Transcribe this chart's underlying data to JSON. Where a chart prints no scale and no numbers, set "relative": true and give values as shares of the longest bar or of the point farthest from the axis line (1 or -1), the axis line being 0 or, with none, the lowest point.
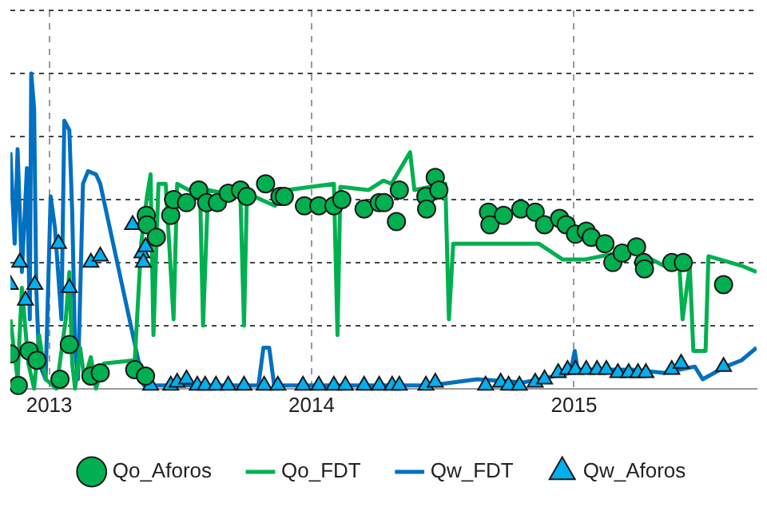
{
  "chart_data": {
    "type": "line",
    "relative": true,
    "grid": true,
    "legend": "bottom",
    "xlim": [
      "2012-11-08",
      "2015-09-12"
    ],
    "xticks": [
      "2013",
      "2014",
      "2015"
    ],
    "series": [
      {
        "name": "Qo_Aforos",
        "type": "scatter",
        "marker": "circle",
        "color": "#00b050",
        "x": [
          "2012-11-08",
          "2012-11-19",
          "2012-12-04",
          "2012-12-15",
          "2013-01-16",
          "2013-01-29",
          "2013-02-28",
          "2013-03-13",
          "2013-04-30",
          "2013-05-15",
          "2013-05-16",
          "2013-05-17",
          "2013-05-30",
          "2013-06-19",
          "2013-06-23",
          "2013-07-11",
          "2013-07-28",
          "2013-08-08",
          "2013-08-23",
          "2013-09-07",
          "2013-09-24",
          "2013-10-03",
          "2013-10-29",
          "2013-11-18",
          "2013-11-24",
          "2013-12-22",
          "2014-01-11",
          "2014-02-01",
          "2014-02-12",
          "2014-03-15",
          "2014-04-05",
          "2014-04-12",
          "2014-04-29",
          "2014-05-03",
          "2014-06-09",
          "2014-06-10",
          "2014-06-22",
          "2014-06-27",
          "2014-09-04",
          "2014-09-06",
          "2014-09-25",
          "2014-10-19",
          "2014-11-08",
          "2014-11-21",
          "2014-12-12",
          "2014-12-21",
          "2015-01-03",
          "2015-01-18",
          "2015-01-25",
          "2015-02-13",
          "2015-02-24",
          "2015-03-09",
          "2015-03-29",
          "2015-04-08",
          "2015-04-09",
          "2015-05-17",
          "2015-06-02",
          "2015-07-28"
        ],
        "values": [
          0.11,
          0.01,
          0.12,
          0.09,
          0.03,
          0.14,
          0.04,
          0.05,
          0.06,
          0.04,
          0.55,
          0.52,
          0.48,
          0.55,
          0.6,
          0.59,
          0.63,
          0.59,
          0.59,
          0.62,
          0.63,
          0.61,
          0.65,
          0.61,
          0.61,
          0.58,
          0.58,
          0.58,
          0.6,
          0.57,
          0.59,
          0.59,
          0.53,
          0.63,
          0.61,
          0.57,
          0.67,
          0.63,
          0.56,
          0.52,
          0.55,
          0.57,
          0.56,
          0.52,
          0.54,
          0.52,
          0.49,
          0.5,
          0.48,
          0.46,
          0.4,
          0.43,
          0.45,
          0.4,
          0.38,
          0.4,
          0.4,
          0.33
        ]
      },
      {
        "name": "Qo_FDT",
        "type": "line",
        "marker": "none",
        "color": "#00b050",
        "x": [
          "2012-11-08",
          "2012-11-18",
          "2012-11-24",
          "2012-12-03",
          "2012-12-11",
          "2012-12-18",
          "2012-12-27",
          "2013-01-11",
          "2013-01-24",
          "2013-01-29",
          "2013-02-02",
          "2013-02-06",
          "2013-02-13",
          "2013-02-19",
          "2013-02-28",
          "2013-03-07",
          "2013-03-18",
          "2013-04-30",
          "2013-05-09",
          "2013-05-17",
          "2013-05-22",
          "2013-05-26",
          "2013-06-02",
          "2013-06-12",
          "2013-06-23",
          "2013-06-28",
          "2013-07-30",
          "2013-08-03",
          "2013-08-10",
          "2013-09-24",
          "2013-09-29",
          "2013-10-03",
          "2013-11-11",
          "2013-11-28",
          "2014-02-01",
          "2014-02-06",
          "2014-02-10",
          "2014-03-21",
          "2014-04-11",
          "2014-04-22",
          "2014-05-18",
          "2014-05-24",
          "2014-07-06",
          "2014-07-11",
          "2014-07-17",
          "2014-09-09",
          "2014-11-13",
          "2014-12-16",
          "2015-01-17",
          "2015-03-23",
          "2015-05-06",
          "2015-05-27",
          "2015-06-01",
          "2015-06-11",
          "2015-06-16",
          "2015-07-03",
          "2015-07-07",
          "2015-08-22",
          "2015-09-12"
        ],
        "values": [
          0.22,
          0.03,
          0.32,
          0.08,
          0,
          0.17,
          0.03,
          0,
          0.22,
          0.37,
          0.08,
          0,
          0.13,
          0.03,
          0.1,
          0,
          0.08,
          0.09,
          0.46,
          0.61,
          0.68,
          0.17,
          0.65,
          0.65,
          0.22,
          0.65,
          0.61,
          0.2,
          0.63,
          0.61,
          0.2,
          0.62,
          0.58,
          0.63,
          0.65,
          0.17,
          0.64,
          0.63,
          0.66,
          0.65,
          0.75,
          0.63,
          0.65,
          0.22,
          0.46,
          0.46,
          0.46,
          0.41,
          0.41,
          0.44,
          0.39,
          0.41,
          0.22,
          0.39,
          0.12,
          0.12,
          0.42,
          0.39,
          0.37
        ]
      },
      {
        "name": "Qw_FDT",
        "type": "line",
        "marker": "none",
        "color": "#0070c0",
        "x": [
          "2012-11-08",
          "2012-11-14",
          "2012-11-18",
          "2012-11-24",
          "2012-12-01",
          "2012-12-05",
          "2012-12-07",
          "2012-12-11",
          "2012-12-14",
          "2012-12-18",
          "2012-12-27",
          "2013-01-03",
          "2013-01-09",
          "2013-01-18",
          "2013-01-22",
          "2013-01-29",
          "2013-02-02",
          "2013-02-06",
          "2013-02-10",
          "2013-02-17",
          "2013-02-24",
          "2013-03-07",
          "2013-03-13",
          "2013-05-04",
          "2013-05-13",
          "2013-10-19",
          "2013-10-26",
          "2013-11-03",
          "2013-11-10",
          "2014-04-11",
          "2014-06-15",
          "2014-08-19",
          "2014-10-23",
          "2014-12-27",
          "2015-01-02",
          "2015-01-06",
          "2015-03-23",
          "2015-05-06",
          "2015-06-18",
          "2015-06-29",
          "2015-07-31",
          "2015-08-22",
          "2015-09-12"
        ],
        "values": [
          0.75,
          0.46,
          0.76,
          0.37,
          0.7,
          0.22,
          1,
          0.89,
          0.32,
          0.08,
          0.03,
          0.61,
          0.51,
          0.22,
          0.85,
          0.82,
          0.56,
          0.13,
          0.03,
          0.65,
          0.69,
          0.68,
          0.65,
          0.1,
          0.01,
          0.01,
          0.13,
          0.13,
          0.01,
          0.01,
          0.01,
          0.03,
          0.02,
          0.05,
          0.12,
          0.06,
          0.06,
          0.05,
          0.07,
          0.03,
          0.07,
          0.09,
          0.13
        ]
      },
      {
        "name": "Qw_Aforos",
        "type": "scatter",
        "marker": "triangle",
        "color": "#00b0f0",
        "x": [
          "2012-11-08",
          "2012-11-21",
          "2012-11-29",
          "2012-12-12",
          "2013-01-14",
          "2013-01-29",
          "2013-02-28",
          "2013-03-13",
          "2013-04-27",
          "2013-05-10",
          "2013-05-12",
          "2013-05-15",
          "2013-05-22",
          "2013-06-19",
          "2013-06-28",
          "2013-07-11",
          "2013-07-26",
          "2013-08-06",
          "2013-08-21",
          "2013-09-07",
          "2013-09-29",
          "2013-10-27",
          "2013-11-15",
          "2013-12-20",
          "2014-01-11",
          "2014-02-01",
          "2014-02-17",
          "2014-03-15",
          "2014-04-05",
          "2014-04-23",
          "2014-05-03",
          "2014-06-09",
          "2014-06-22",
          "2014-08-31",
          "2014-09-21",
          "2014-10-02",
          "2014-10-17",
          "2014-11-08",
          "2014-11-21",
          "2014-12-10",
          "2014-12-23",
          "2015-01-03",
          "2015-01-18",
          "2015-02-02",
          "2015-02-15",
          "2015-03-03",
          "2015-03-18",
          "2015-03-31",
          "2015-04-11",
          "2015-05-17",
          "2015-05-30",
          "2015-07-28"
        ],
        "values": [
          0.33,
          0.4,
          0.28,
          0.33,
          0.46,
          0.32,
          0.4,
          0.42,
          0.52,
          0.43,
          0.4,
          0.45,
          0.01,
          0.01,
          0.02,
          0.03,
          0.01,
          0.01,
          0.01,
          0.01,
          0.01,
          0.01,
          0.01,
          0.01,
          0.01,
          0.01,
          0.01,
          0.01,
          0.01,
          0.01,
          0.01,
          0.01,
          0.02,
          0.01,
          0.02,
          0.01,
          0.01,
          0.02,
          0.03,
          0.05,
          0.06,
          0.06,
          0.06,
          0.06,
          0.06,
          0.05,
          0.05,
          0.05,
          0.05,
          0.06,
          0.08,
          0.07
        ]
      }
    ]
  }
}
